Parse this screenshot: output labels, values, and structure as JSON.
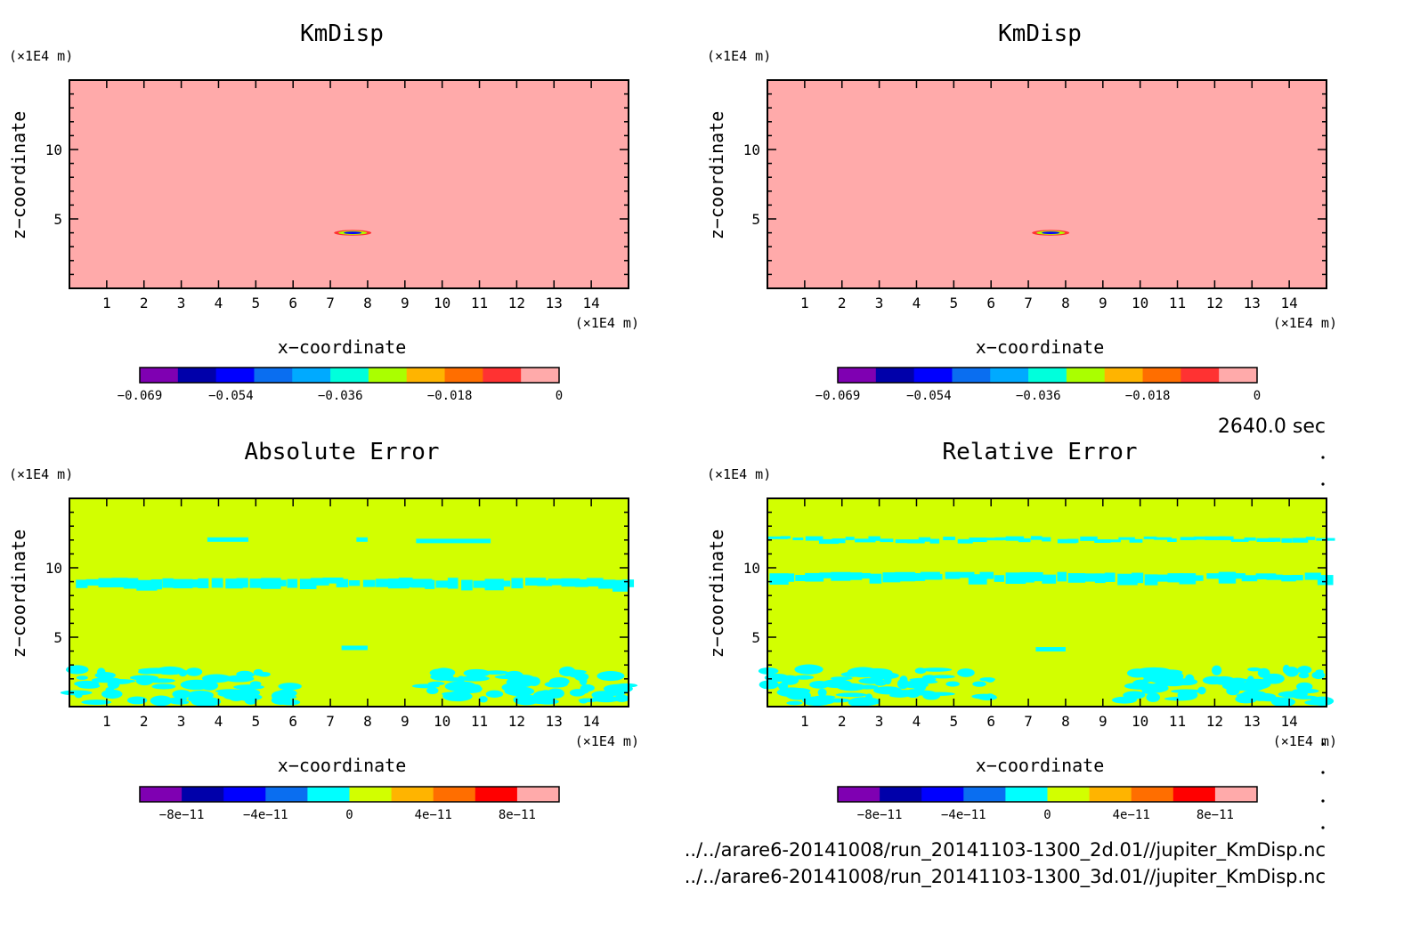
{
  "colors": {
    "frame": "#000000",
    "background": "#ffffff",
    "km_fill": "#ffaaaa",
    "err_fill": "#d2ff00",
    "err_patch": "#00ffff"
  },
  "colorbar_palette": [
    "#7f00b2",
    "#0000aa",
    "#0000ff",
    "#0a6ef0",
    "#00aaff",
    "#00ffdc",
    "#aaff00",
    "#ffb400",
    "#ff6e00",
    "#ff3232",
    "#ff0000",
    "#ffaaaa"
  ],
  "time_label": "2640.0 sec",
  "footer_paths": [
    "../../arare6-20141008/run_20141103-1300_2d.01//jupiter_KmDisp.nc",
    "../../arare6-20141008/run_20141103-1300_3d.01//jupiter_KmDisp.nc"
  ],
  "chart_data": [
    {
      "type": "heatmap",
      "title": "KmDisp",
      "xlabel": "x−coordinate",
      "ylabel": "z−coordinate",
      "x_unit": "(×1E4 m)",
      "y_unit": "(×1E4 m)",
      "xlim": [
        0,
        15
      ],
      "ylim": [
        0,
        15
      ],
      "xticks": [
        "1",
        "2",
        "3",
        "4",
        "5",
        "6",
        "7",
        "8",
        "9",
        "10",
        "11",
        "12",
        "13",
        "14"
      ],
      "yticks": [
        "5",
        "10"
      ],
      "colorbar": {
        "colors": [
          "#7f00b2",
          "#0000aa",
          "#0000ff",
          "#0a6ef0",
          "#00aaff",
          "#00ffdc",
          "#aaff00",
          "#ffb400",
          "#ff6e00",
          "#ff3232",
          "#ffaaaa"
        ],
        "ticks": [
          "−0.069",
          "−0.054",
          "−0.036",
          "−0.018",
          "0"
        ],
        "tick_values": [
          -0.069,
          -0.054,
          -0.036,
          -0.018,
          0
        ],
        "range": [
          -0.069,
          0
        ]
      },
      "field": "uniform 0 with a small negative feature near x=7.6, z=4"
    },
    {
      "type": "heatmap",
      "title": "KmDisp",
      "xlabel": "x−coordinate",
      "ylabel": "z−coordinate",
      "x_unit": "(×1E4 m)",
      "y_unit": "(×1E4 m)",
      "xlim": [
        0,
        15
      ],
      "ylim": [
        0,
        15
      ],
      "xticks": [
        "1",
        "2",
        "3",
        "4",
        "5",
        "6",
        "7",
        "8",
        "9",
        "10",
        "11",
        "12",
        "13",
        "14"
      ],
      "yticks": [
        "5",
        "10"
      ],
      "colorbar": {
        "colors": [
          "#7f00b2",
          "#0000aa",
          "#0000ff",
          "#0a6ef0",
          "#00aaff",
          "#00ffdc",
          "#aaff00",
          "#ffb400",
          "#ff6e00",
          "#ff3232",
          "#ffaaaa"
        ],
        "ticks": [
          "−0.069",
          "−0.054",
          "−0.036",
          "−0.018",
          "0"
        ],
        "tick_values": [
          -0.069,
          -0.054,
          -0.036,
          -0.018,
          0
        ],
        "range": [
          -0.069,
          0
        ]
      },
      "field": "uniform 0 with a small negative feature near x=7.6, z=4"
    },
    {
      "type": "heatmap",
      "title": "Absolute Error",
      "xlabel": "x−coordinate",
      "ylabel": "z−coordinate",
      "x_unit": "(×1E4 m)",
      "y_unit": "(×1E4 m)",
      "xlim": [
        0,
        15
      ],
      "ylim": [
        0,
        15
      ],
      "xticks": [
        "1",
        "2",
        "3",
        "4",
        "5",
        "6",
        "7",
        "8",
        "9",
        "10",
        "11",
        "12",
        "13",
        "14"
      ],
      "yticks": [
        "5",
        "10"
      ],
      "colorbar": {
        "colors": [
          "#7f00b2",
          "#0000aa",
          "#0000ff",
          "#0a6ef0",
          "#00ffff",
          "#d2ff00",
          "#ffb400",
          "#ff6e00",
          "#ff0000",
          "#ffaaaa"
        ],
        "ticks": [
          "−8e−11",
          "−4e−11",
          "0",
          "4e−11",
          "8e−11"
        ],
        "tick_values": [
          -8e-11,
          -4e-11,
          0,
          4e-11,
          8e-11
        ],
        "range": [
          -1e-10,
          1e-10
        ]
      },
      "patches": [
        {
          "z": 12.0,
          "x": [
            3.7,
            4.8
          ]
        },
        {
          "z": 12.0,
          "x": [
            7.7,
            8.0
          ]
        },
        {
          "z": 11.9,
          "x": [
            9.3,
            11.3
          ]
        },
        {
          "z": 8.8,
          "x": [
            0.1,
            15.0
          ]
        },
        {
          "z": 4.2,
          "x": [
            7.3,
            8.0
          ]
        },
        {
          "z": 1.5,
          "x": [
            0.1,
            6.0
          ]
        },
        {
          "z": 1.5,
          "x": [
            9.5,
            15.0
          ]
        }
      ]
    },
    {
      "type": "heatmap",
      "title": "Relative Error",
      "xlabel": "x−coordinate",
      "ylabel": "z−coordinate",
      "x_unit": "(×1E4 m)",
      "y_unit": "(×1E4 m)",
      "xlim": [
        0,
        15
      ],
      "ylim": [
        0,
        15
      ],
      "xticks": [
        "1",
        "2",
        "3",
        "4",
        "5",
        "6",
        "7",
        "8",
        "9",
        "10",
        "11",
        "12",
        "13",
        "14"
      ],
      "yticks": [
        "5",
        "10"
      ],
      "colorbar": {
        "colors": [
          "#7f00b2",
          "#0000aa",
          "#0000ff",
          "#0a6ef0",
          "#00ffff",
          "#d2ff00",
          "#ffb400",
          "#ff6e00",
          "#ff0000",
          "#ffaaaa"
        ],
        "ticks": [
          "−8e−11",
          "−4e−11",
          "0",
          "4e−11",
          "8e−11"
        ],
        "tick_values": [
          -8e-11,
          -4e-11,
          0,
          4e-11,
          8e-11
        ],
        "range": [
          -1e-10,
          1e-10
        ]
      },
      "patches": [
        {
          "z": 12.0,
          "x": [
            0.0,
            15.0
          ]
        },
        {
          "z": 9.2,
          "x": [
            0.0,
            15.0
          ]
        },
        {
          "z": 4.1,
          "x": [
            7.2,
            8.0
          ]
        },
        {
          "z": 1.7,
          "x": [
            0.0,
            6.0
          ]
        },
        {
          "z": 1.7,
          "x": [
            9.5,
            15.0
          ]
        }
      ]
    }
  ]
}
